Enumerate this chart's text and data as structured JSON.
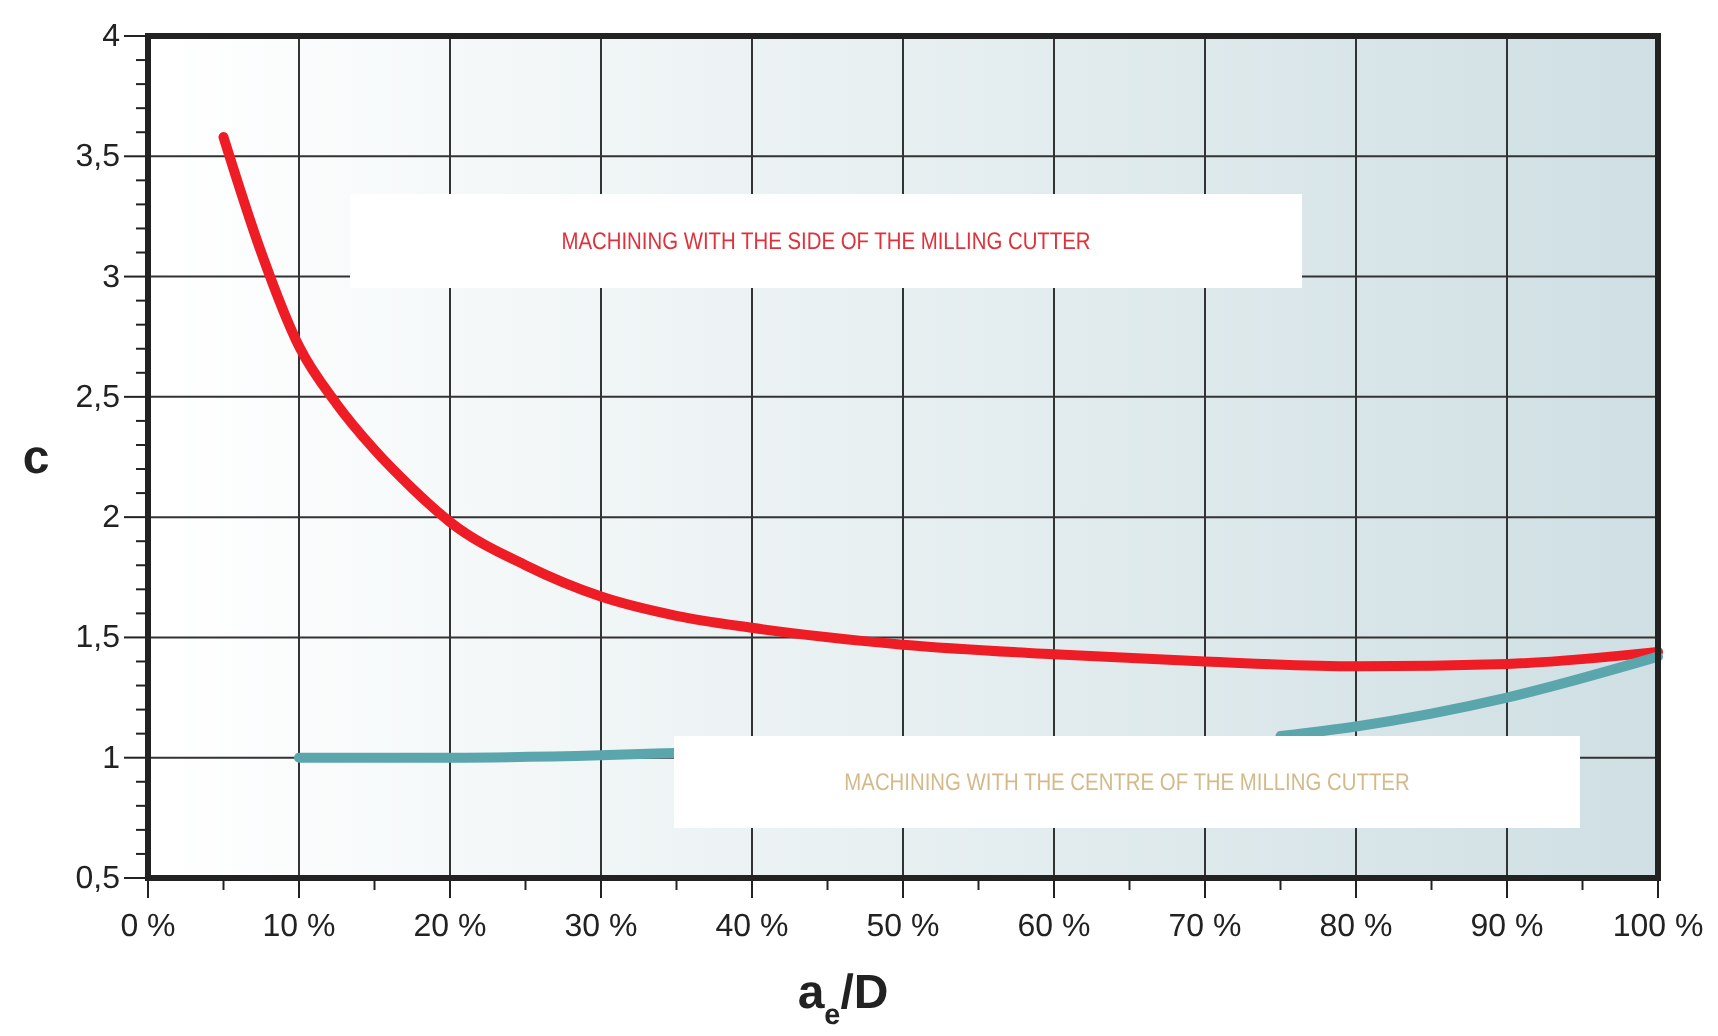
{
  "chart_data": {
    "type": "line",
    "xlabel": "a$_{e}$/D",
    "ylabel": "c",
    "xlim": [
      0,
      100
    ],
    "ylim": [
      0.5,
      4
    ],
    "xticks": [
      {
        "value": 0,
        "label": "0 %"
      },
      {
        "value": 5,
        "label": null
      },
      {
        "value": 10,
        "label": "10 %"
      },
      {
        "value": 15,
        "label": null
      },
      {
        "value": 20,
        "label": "20 %"
      },
      {
        "value": 25,
        "label": null
      },
      {
        "value": 30,
        "label": "30 %"
      },
      {
        "value": 35,
        "label": null
      },
      {
        "value": 40,
        "label": "40 %"
      },
      {
        "value": 45,
        "label": null
      },
      {
        "value": 50,
        "label": "50 %"
      },
      {
        "value": 55,
        "label": null
      },
      {
        "value": 60,
        "label": "60 %"
      },
      {
        "value": 65,
        "label": null
      },
      {
        "value": 70,
        "label": "70 %"
      },
      {
        "value": 75,
        "label": null
      },
      {
        "value": 80,
        "label": "80 %"
      },
      {
        "value": 85,
        "label": null
      },
      {
        "value": 90,
        "label": "90 %"
      },
      {
        "value": 95,
        "label": null
      },
      {
        "value": 100,
        "label": "100 %"
      }
    ],
    "yticks": [
      {
        "value": 0.5,
        "label": "0,5"
      },
      {
        "value": 0.6,
        "label": null
      },
      {
        "value": 0.7,
        "label": null
      },
      {
        "value": 0.8,
        "label": null
      },
      {
        "value": 0.9,
        "label": null
      },
      {
        "value": 1,
        "label": "1"
      },
      {
        "value": 1.1,
        "label": null
      },
      {
        "value": 1.2,
        "label": null
      },
      {
        "value": 1.3,
        "label": null
      },
      {
        "value": 1.4,
        "label": null
      },
      {
        "value": 1.5,
        "label": "1,5"
      },
      {
        "value": 1.6,
        "label": null
      },
      {
        "value": 1.7,
        "label": null
      },
      {
        "value": 1.8,
        "label": null
      },
      {
        "value": 1.9,
        "label": null
      },
      {
        "value": 2,
        "label": "2"
      },
      {
        "value": 2.1,
        "label": null
      },
      {
        "value": 2.2,
        "label": null
      },
      {
        "value": 2.3,
        "label": null
      },
      {
        "value": 2.4,
        "label": null
      },
      {
        "value": 2.5,
        "label": "2,5"
      },
      {
        "value": 2.6,
        "label": null
      },
      {
        "value": 2.7,
        "label": null
      },
      {
        "value": 2.8,
        "label": null
      },
      {
        "value": 2.9,
        "label": null
      },
      {
        "value": 3,
        "label": "3"
      },
      {
        "value": 3.1,
        "label": null
      },
      {
        "value": 3.2,
        "label": null
      },
      {
        "value": 3.3,
        "label": null
      },
      {
        "value": 3.4,
        "label": null
      },
      {
        "value": 3.5,
        "label": "3,5"
      },
      {
        "value": 3.6,
        "label": null
      },
      {
        "value": 3.7,
        "label": null
      },
      {
        "value": 3.8,
        "label": null
      },
      {
        "value": 3.9,
        "label": null
      },
      {
        "value": 4,
        "label": "4"
      }
    ],
    "grid": true,
    "line_style": "solid",
    "marker": "none",
    "series": [
      {
        "color": "#ee1c25",
        "x": [
          5,
          7.5,
          10,
          12.5,
          15,
          17.5,
          20,
          25,
          30,
          35,
          40,
          50,
          60,
          70,
          80,
          90,
          100
        ],
        "values": [
          3.58,
          3.1,
          2.71,
          2.47,
          2.28,
          2.12,
          1.98,
          1.8,
          1.67,
          1.59,
          1.54,
          1.47,
          1.43,
          1.4,
          1.38,
          1.39,
          1.44
        ]
      },
      {
        "color": "#5ba5ad",
        "x": [
          10,
          20,
          30,
          35,
          40,
          50,
          60,
          70,
          75,
          80,
          90,
          100
        ],
        "values": [
          1.0,
          1.0,
          1.01,
          1.02,
          null,
          null,
          null,
          null,
          1.09,
          1.13,
          1.25,
          1.42
        ]
      }
    ],
    "annotations": [
      "MACHINING WITH THE SIDE OF THE MILLING CUTTER",
      "MACHINING WITH THE CENTRE OF THE MILLING CUTTER"
    ]
  }
}
